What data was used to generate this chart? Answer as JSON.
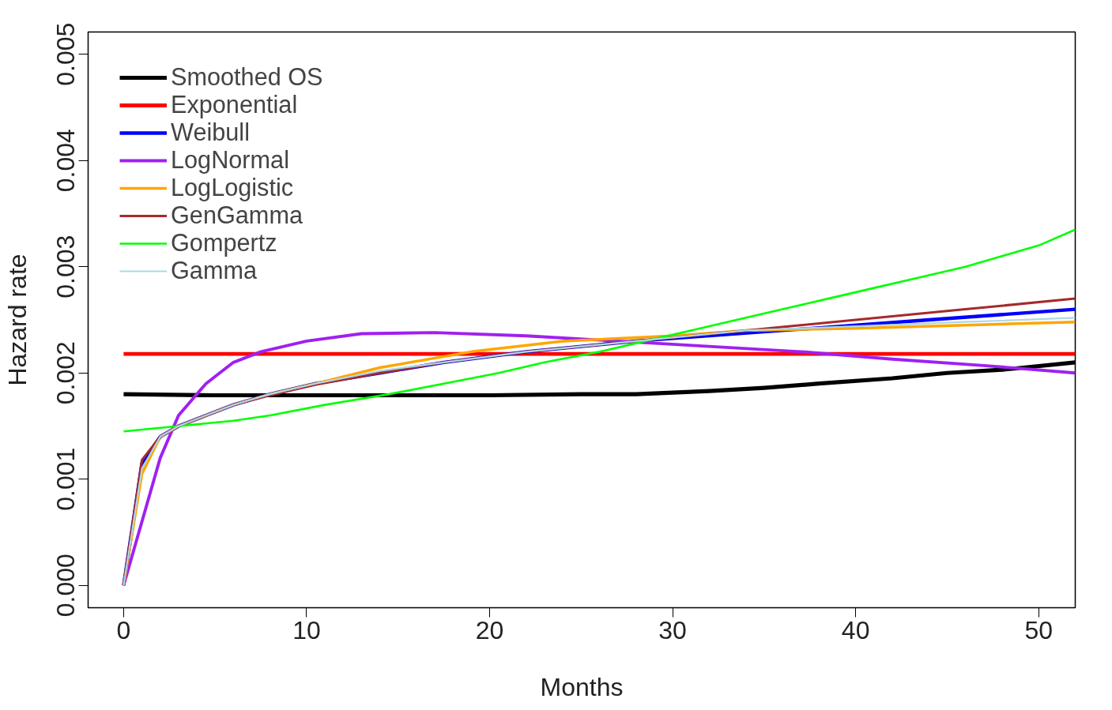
{
  "chart_data": {
    "type": "line",
    "xlabel": "Months",
    "ylabel": "Hazard rate",
    "xlim": [
      -1.94,
      52.0
    ],
    "ylim": [
      -0.00021,
      0.00521
    ],
    "xticks": [
      0,
      10,
      20,
      30,
      40,
      50
    ],
    "yticks": [
      {
        "value": 0,
        "label": "0.000"
      },
      {
        "value": 0.001,
        "label": "0.001"
      },
      {
        "value": 0.002,
        "label": "0.002"
      },
      {
        "value": 0.003,
        "label": "0.003"
      },
      {
        "value": 0.004,
        "label": "0.004"
      },
      {
        "value": 0.005,
        "label": "0.005"
      }
    ],
    "grid": false,
    "legend": "top left",
    "marker": "none",
    "line_style": "solid",
    "series": [
      {
        "name": "Smoothed OS",
        "color": "#000000",
        "x": [
          0,
          5,
          10,
          15,
          20,
          25,
          28,
          32,
          35,
          38,
          42,
          45,
          48,
          52
        ],
        "values": [
          0.0018,
          0.00179,
          0.00179,
          0.00179,
          0.00179,
          0.0018,
          0.0018,
          0.00183,
          0.00186,
          0.0019,
          0.00195,
          0.002,
          0.00203,
          0.0021
        ]
      },
      {
        "name": "Exponential",
        "color": "#ff0000",
        "x": [
          0,
          52
        ],
        "values": [
          0.00218,
          0.00218
        ]
      },
      {
        "name": "Weibull",
        "color": "#0000ff",
        "x": [
          0,
          1,
          2,
          3,
          4.5,
          6,
          8,
          10.5,
          14,
          17.5,
          22,
          28,
          36,
          44,
          52
        ],
        "values": [
          0,
          0.00115,
          0.0014,
          0.0015,
          0.0016,
          0.0017,
          0.0018,
          0.0019,
          0.002,
          0.0021,
          0.0022,
          0.0023,
          0.0024,
          0.0025,
          0.0026
        ]
      },
      {
        "name": "LogNormal",
        "color": "#a020f0",
        "x": [
          0,
          1,
          2,
          3,
          4.5,
          6,
          7.5,
          10,
          13,
          17,
          22,
          27,
          32,
          37,
          42,
          47,
          52
        ],
        "values": [
          0,
          0.0006,
          0.0012,
          0.0016,
          0.0019,
          0.0021,
          0.0022,
          0.0023,
          0.00237,
          0.00238,
          0.00235,
          0.0023,
          0.00225,
          0.0022,
          0.00213,
          0.00207,
          0.002
        ]
      },
      {
        "name": "LogLogistic",
        "color": "#ffa500",
        "x": [
          0,
          1,
          2,
          3,
          4.5,
          6,
          8,
          10.5,
          14,
          19,
          24,
          30,
          34,
          40,
          46,
          52
        ],
        "values": [
          0,
          0.00105,
          0.0014,
          0.0015,
          0.0016,
          0.0017,
          0.0018,
          0.0019,
          0.00205,
          0.0022,
          0.0023,
          0.00235,
          0.0024,
          0.00242,
          0.00245,
          0.00248
        ]
      },
      {
        "name": "GenGamma",
        "color": "#a52a2a",
        "x": [
          0,
          1,
          2,
          3,
          4.5,
          6,
          8,
          10.5,
          14,
          17.5,
          22,
          28,
          34,
          40,
          46,
          52
        ],
        "values": [
          0,
          0.00118,
          0.0014,
          0.0015,
          0.0016,
          0.0017,
          0.00179,
          0.00189,
          0.002,
          0.0021,
          0.0022,
          0.0023,
          0.0024,
          0.0025,
          0.0026,
          0.0027
        ]
      },
      {
        "name": "Gompertz",
        "color": "#00ff00",
        "x": [
          0,
          3,
          6,
          8,
          11,
          14.5,
          17.5,
          20.5,
          23,
          26,
          28.5,
          31,
          33.5,
          36,
          38.5,
          41,
          43.5,
          46,
          48,
          50,
          52
        ],
        "values": [
          0.00145,
          0.0015,
          0.00155,
          0.0016,
          0.0017,
          0.0018,
          0.0019,
          0.002,
          0.0021,
          0.0022,
          0.0023,
          0.0024,
          0.0025,
          0.0026,
          0.0027,
          0.0028,
          0.0029,
          0.003,
          0.0031,
          0.0032,
          0.00335
        ]
      },
      {
        "name": "Gamma",
        "color": "#add8e6",
        "x": [
          0,
          1,
          2,
          3,
          4.5,
          6,
          8,
          10.5,
          14,
          17.5,
          22,
          28,
          34,
          40,
          46,
          52
        ],
        "values": [
          0,
          0.0011,
          0.0014,
          0.0015,
          0.0016,
          0.0017,
          0.0018,
          0.0019,
          0.00202,
          0.0021,
          0.0022,
          0.0023,
          0.0024,
          0.00244,
          0.00248,
          0.00252
        ]
      }
    ]
  }
}
